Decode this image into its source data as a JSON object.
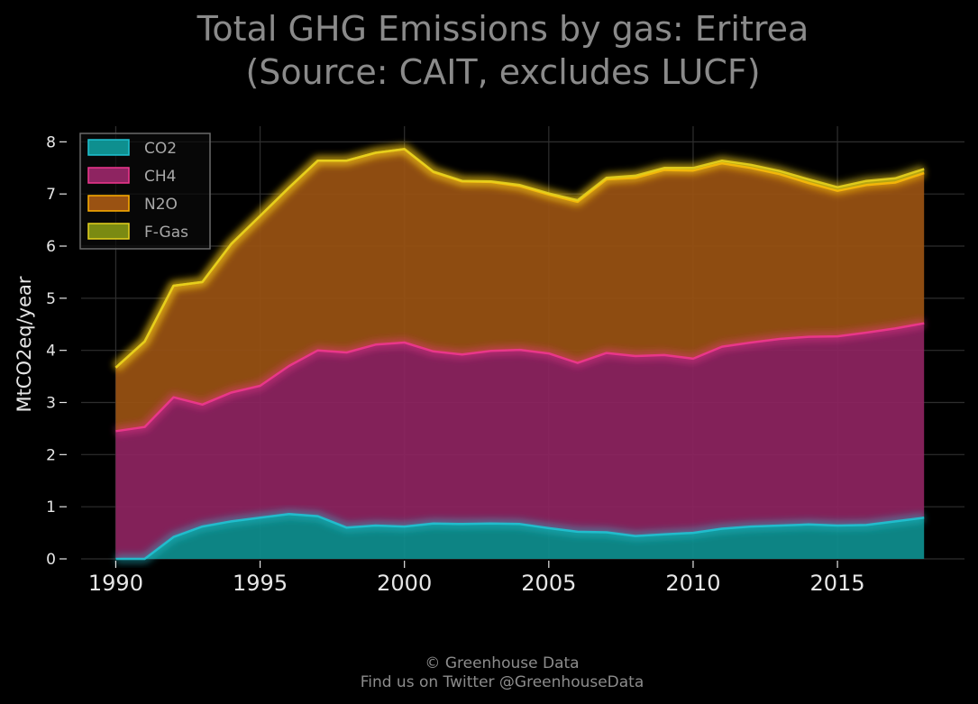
{
  "chart_data": {
    "type": "area",
    "stacked": true,
    "title": [
      "Total GHG Emissions by gas: Eritrea",
      "(Source: CAIT, excludes LUCF)"
    ],
    "ylabel": "MtCO2eq/year",
    "xlabel": "",
    "xlim": [
      1988.8,
      2019.4
    ],
    "ylim": [
      0,
      8.3
    ],
    "xticks": [
      1990,
      1995,
      2000,
      2005,
      2010,
      2015
    ],
    "yticks": [
      0,
      1,
      2,
      3,
      4,
      5,
      6,
      7,
      8
    ],
    "grid": true,
    "legend_position": "top-left",
    "x": [
      1990,
      1991,
      1992,
      1993,
      1994,
      1995,
      1996,
      1997,
      1998,
      1999,
      2000,
      2001,
      2002,
      2003,
      2004,
      2005,
      2006,
      2007,
      2008,
      2009,
      2010,
      2011,
      2012,
      2013,
      2014,
      2015,
      2016,
      2017,
      2018
    ],
    "series": [
      {
        "name": "CO2",
        "fill": "#0e8f8f",
        "line": "#1fc3d3",
        "values": [
          0.0,
          0.0,
          0.42,
          0.62,
          0.72,
          0.79,
          0.86,
          0.82,
          0.6,
          0.64,
          0.62,
          0.68,
          0.67,
          0.68,
          0.67,
          0.59,
          0.52,
          0.51,
          0.44,
          0.47,
          0.5,
          0.58,
          0.62,
          0.64,
          0.66,
          0.64,
          0.65,
          0.72,
          0.79
        ]
      },
      {
        "name": "CH4",
        "fill": "#8e2461",
        "line": "#f0378f",
        "values": [
          2.45,
          2.53,
          2.68,
          2.34,
          2.47,
          2.53,
          2.84,
          3.18,
          3.36,
          3.47,
          3.53,
          3.3,
          3.25,
          3.31,
          3.34,
          3.35,
          3.24,
          3.44,
          3.45,
          3.44,
          3.34,
          3.49,
          3.53,
          3.58,
          3.6,
          3.63,
          3.69,
          3.7,
          3.73
        ]
      },
      {
        "name": "N2O",
        "fill": "#9a5212",
        "line": "#ffb000",
        "values": [
          1.22,
          1.64,
          2.14,
          2.35,
          2.85,
          3.26,
          3.42,
          3.64,
          3.68,
          3.68,
          3.71,
          3.44,
          3.32,
          3.24,
          3.14,
          3.05,
          3.09,
          3.33,
          3.42,
          3.55,
          3.61,
          3.52,
          3.35,
          3.16,
          2.95,
          2.79,
          2.83,
          2.8,
          2.88
        ]
      },
      {
        "name": "F-Gas",
        "fill": "#7a8a12",
        "line": "#e6d21e",
        "values": [
          0.0,
          0.0,
          0.0,
          0.0,
          0.0,
          0.0,
          0.0,
          0.0,
          0.0,
          0.0,
          0.0,
          0.01,
          0.01,
          0.01,
          0.02,
          0.02,
          0.03,
          0.03,
          0.04,
          0.04,
          0.05,
          0.05,
          0.06,
          0.06,
          0.07,
          0.07,
          0.08,
          0.08,
          0.08
        ]
      }
    ]
  },
  "footer": {
    "line1": "© Greenhouse Data",
    "line2": "Find us on Twitter @GreenhouseData"
  },
  "colors": {
    "background": "#000000",
    "grid": "#2e2e2e",
    "legend_border": "#6a6a6a"
  }
}
